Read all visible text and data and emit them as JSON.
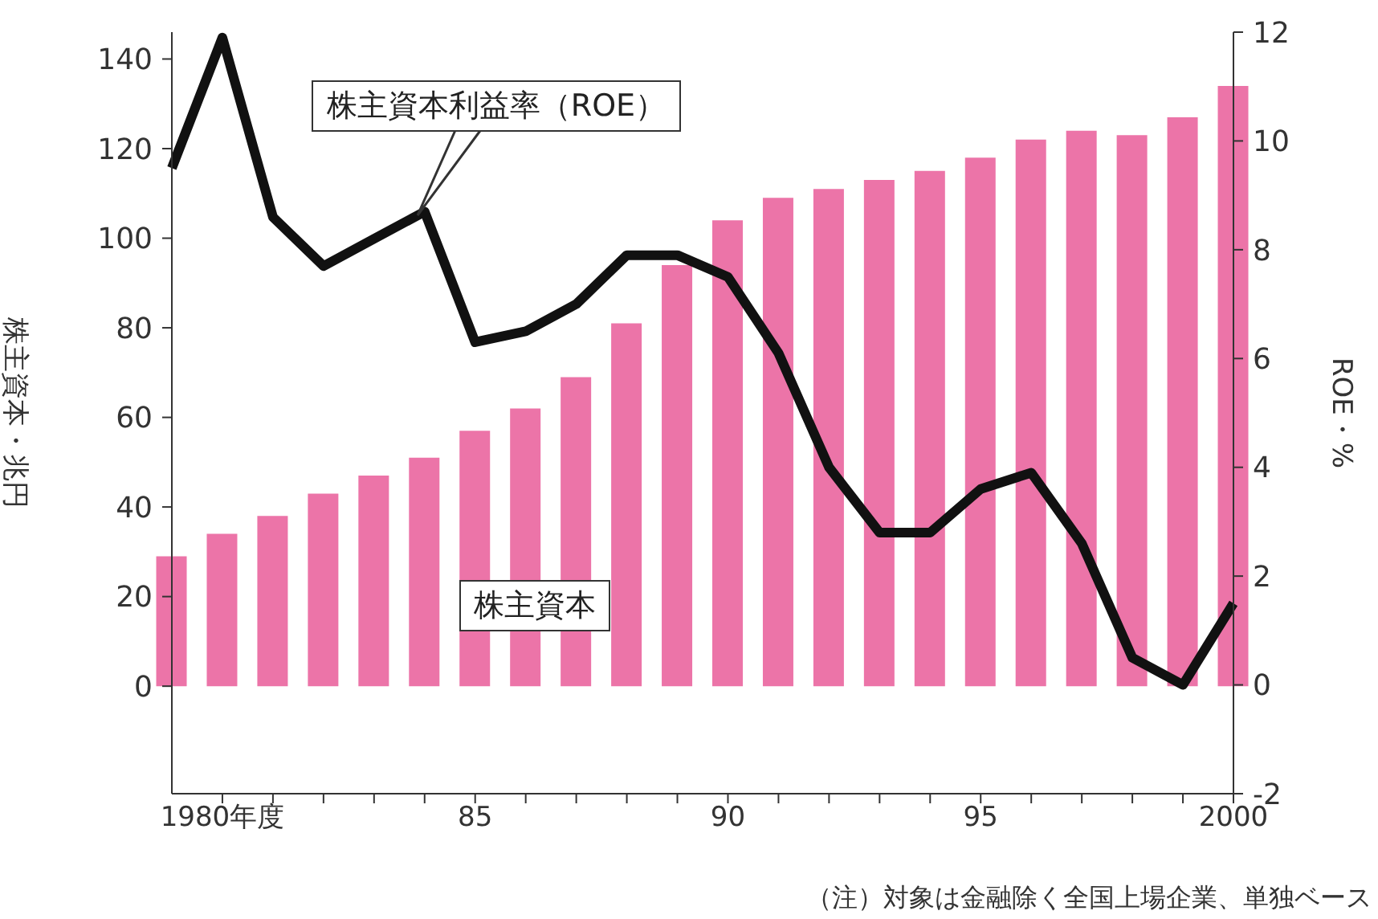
{
  "chart_data": {
    "type": "bar",
    "x": [
      1979,
      1980,
      1981,
      1982,
      1983,
      1984,
      1985,
      1986,
      1987,
      1988,
      1989,
      1990,
      1991,
      1992,
      1993,
      1994,
      1995,
      1996,
      1997,
      1998,
      1999,
      2000
    ],
    "series": [
      {
        "name": "株主資本",
        "color": "#ec74a8",
        "values": [
          29,
          34,
          38,
          43,
          47,
          51,
          57,
          62,
          69,
          81,
          94,
          104,
          109,
          111,
          113,
          115,
          118,
          122,
          124,
          123,
          127,
          134
        ]
      },
      {
        "name": "株主資本利益率（ROE）",
        "type": "line",
        "axis": "y2",
        "color": "#111111",
        "values": [
          9.5,
          11.9,
          8.6,
          7.7,
          8.2,
          8.7,
          6.3,
          6.5,
          7.0,
          7.9,
          7.9,
          7.5,
          6.1,
          4.0,
          2.8,
          2.8,
          3.6,
          3.9,
          2.6,
          0.5,
          0.0,
          1.5
        ]
      }
    ],
    "ylabel": "株主資本・兆円",
    "y2label": "ROE・%",
    "xlim": [
      1979,
      2000
    ],
    "xticks": [
      {
        "value": 1980,
        "label": "1980年度"
      },
      {
        "value": 1981,
        "label": null
      },
      {
        "value": 1982,
        "label": null
      },
      {
        "value": 1983,
        "label": null
      },
      {
        "value": 1984,
        "label": null
      },
      {
        "value": 1985,
        "label": "85"
      },
      {
        "value": 1986,
        "label": null
      },
      {
        "value": 1987,
        "label": null
      },
      {
        "value": 1988,
        "label": null
      },
      {
        "value": 1989,
        "label": null
      },
      {
        "value": 1990,
        "label": "90"
      },
      {
        "value": 1991,
        "label": null
      },
      {
        "value": 1992,
        "label": null
      },
      {
        "value": 1993,
        "label": null
      },
      {
        "value": 1994,
        "label": null
      },
      {
        "value": 1995,
        "label": "95"
      },
      {
        "value": 1996,
        "label": null
      },
      {
        "value": 1997,
        "label": null
      },
      {
        "value": 1998,
        "label": null
      },
      {
        "value": 1999,
        "label": null
      },
      {
        "value": 2000,
        "label": "2000"
      }
    ],
    "ylim": [
      -24,
      146
    ],
    "yticks": [
      0,
      20,
      40,
      60,
      80,
      100,
      120,
      140
    ],
    "y2lim": [
      -2,
      12
    ],
    "y2ticks": [
      -2,
      0,
      2,
      4,
      6,
      8,
      10,
      12
    ],
    "grid": false,
    "legend": false,
    "marker": "none",
    "line_style": "solid",
    "annotations": [
      "（注）対象は金融除く全国上場企業、単独ベース"
    ]
  }
}
